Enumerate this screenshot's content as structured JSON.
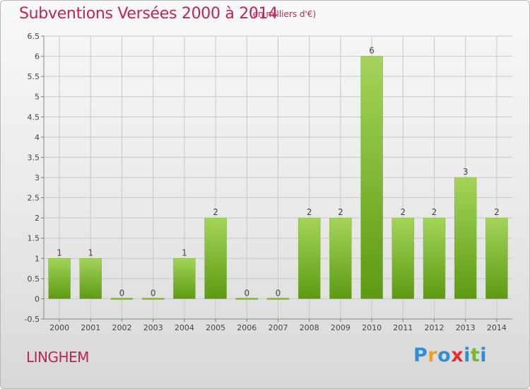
{
  "header": {
    "title": "Subventions Versées 2000 à 2014",
    "subtitle": "(en milliers d'€)"
  },
  "footer": {
    "commune": "LINGHEM",
    "brand": [
      "P",
      "r",
      "o",
      "x",
      "i",
      "t",
      "i"
    ]
  },
  "colors": {
    "title": "#c0235a",
    "bar_top": "#a4d45a",
    "bar_bottom": "#5d9a12",
    "logo": [
      "#2f8fd0",
      "#f0a020",
      "#2f8fd0",
      "#e03030",
      "#2f8fd0",
      "#79b82a",
      "#2f8fd0"
    ]
  },
  "chart_data": {
    "type": "bar",
    "title": "Subventions Versées 2000 à 2014",
    "subtitle": "(en milliers d'€)",
    "categories": [
      "2000",
      "2001",
      "2002",
      "2003",
      "2004",
      "2005",
      "2006",
      "2007",
      "2008",
      "2009",
      "2010",
      "2011",
      "2012",
      "2013",
      "2014"
    ],
    "values": [
      1,
      1,
      0,
      0,
      1,
      2,
      0,
      0,
      2,
      2,
      6,
      2,
      2,
      3,
      2
    ],
    "ylim": [
      -0.5,
      6.5
    ],
    "yticks": [
      "-0.5",
      "0",
      "0.5",
      "1",
      "1.5",
      "2",
      "2.5",
      "3",
      "3.5",
      "4",
      "4.5",
      "5",
      "5.5",
      "6",
      "6.5"
    ],
    "grid": true
  }
}
